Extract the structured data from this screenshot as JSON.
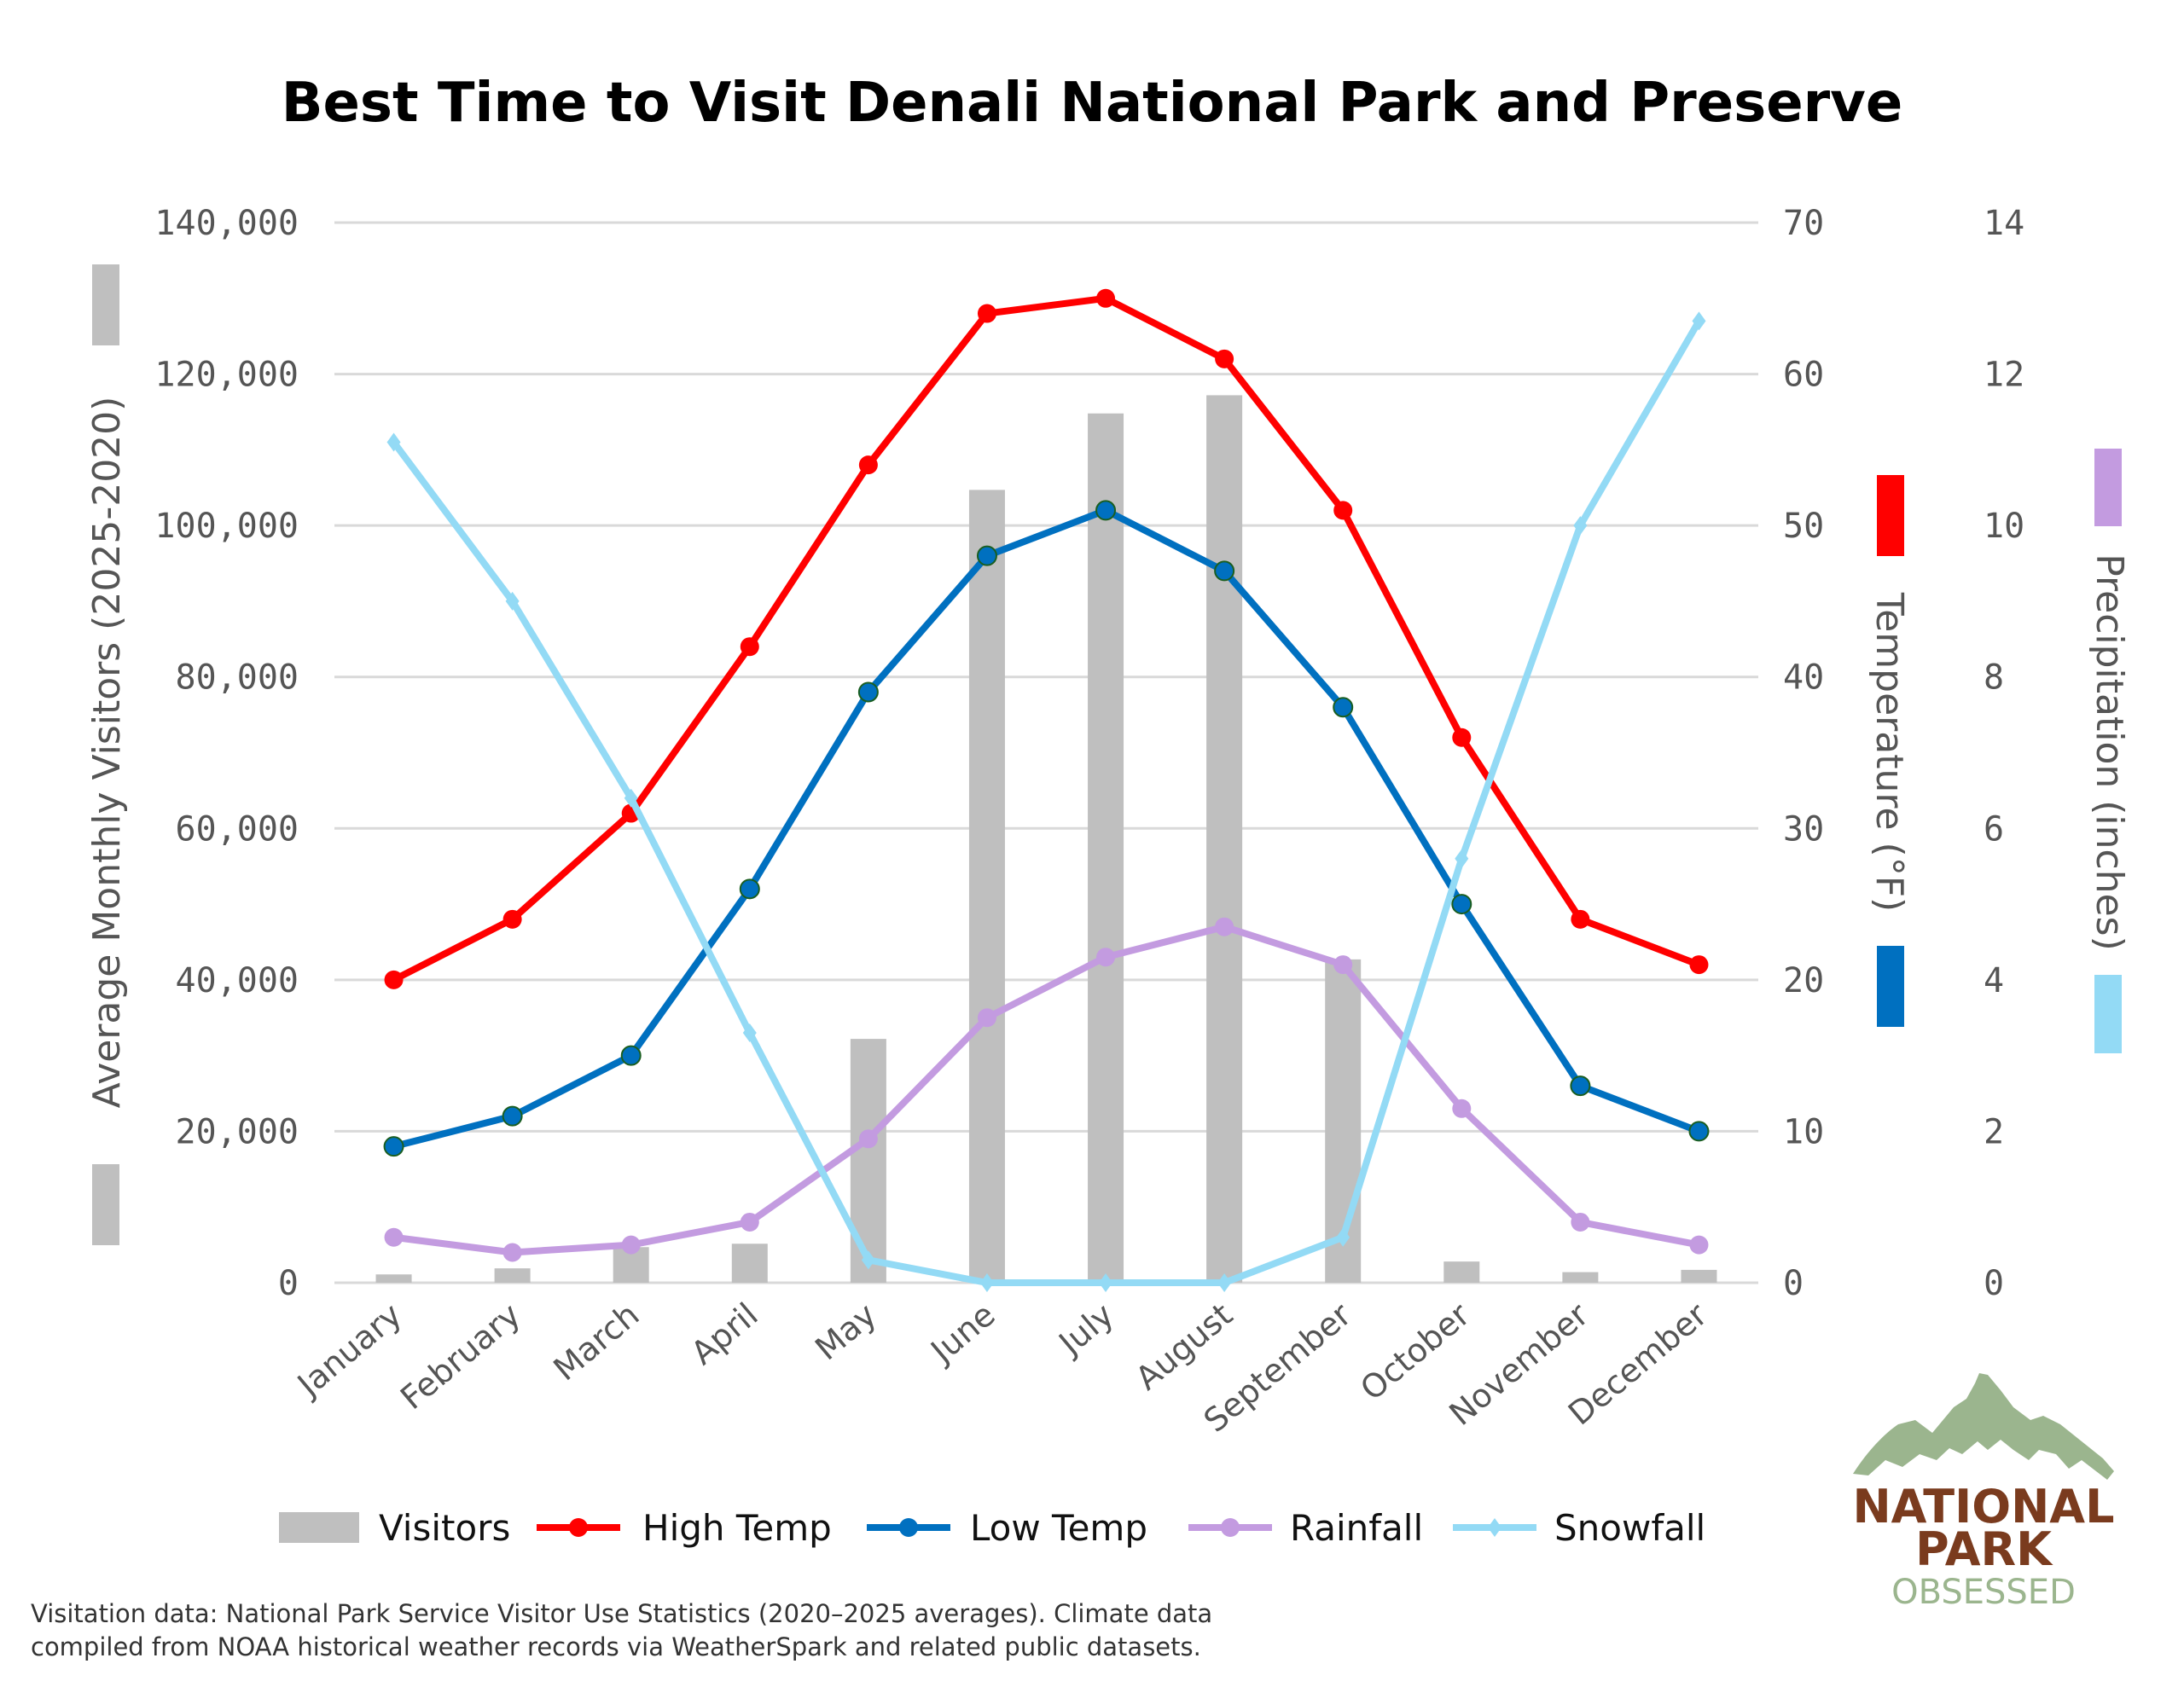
{
  "chart_data": {
    "type": "bar+line",
    "title": "Best Time to Visit Denali National Park and Preserve",
    "categories": [
      "January",
      "February",
      "March",
      "April",
      "May",
      "June",
      "July",
      "August",
      "September",
      "October",
      "November",
      "December"
    ],
    "axes": {
      "left": {
        "label": "Average Monthly Visitors (2025-2020)",
        "range": [
          0,
          140000
        ],
        "ticks": [
          "0",
          "20,000",
          "40,000",
          "60,000",
          "80,000",
          "100,000",
          "120,000",
          "140,000"
        ]
      },
      "right_temp": {
        "label": "Temperature (°F)",
        "range": [
          0,
          70
        ],
        "ticks": [
          "0",
          "10",
          "20",
          "30",
          "40",
          "50",
          "60",
          "70"
        ]
      },
      "right_precip": {
        "label": "Precipitation (inches)",
        "range": [
          0,
          14
        ],
        "ticks": [
          "0",
          "2",
          "4",
          "6",
          "8",
          "10",
          "12",
          "14"
        ]
      }
    },
    "grid": true,
    "legend_position": "bottom",
    "series": [
      {
        "name": "Visitors",
        "type": "bar",
        "axis": "left",
        "color": "#bfbfbf",
        "values": [
          1100,
          1900,
          4700,
          5150,
          32200,
          104700,
          114800,
          117200,
          42700,
          2800,
          1400,
          1700
        ]
      },
      {
        "name": "High Temp",
        "type": "line",
        "axis": "right_temp",
        "color": "#ff0000",
        "marker": "circle",
        "values": [
          20,
          24,
          31,
          42,
          54,
          64,
          65,
          61,
          51,
          36,
          24,
          21
        ]
      },
      {
        "name": "Low Temp",
        "type": "line",
        "axis": "right_temp",
        "color": "#0070c0",
        "marker": "circle",
        "values": [
          9,
          11,
          15,
          26,
          39,
          48,
          51,
          47,
          38,
          25,
          13,
          10
        ]
      },
      {
        "name": "Rainfall",
        "type": "line",
        "axis": "right_precip",
        "color": "#c39be0",
        "marker": "circle",
        "values": [
          0.6,
          0.4,
          0.5,
          0.8,
          1.9,
          3.5,
          4.3,
          4.7,
          4.2,
          2.3,
          0.8,
          0.5
        ]
      },
      {
        "name": "Snowfall",
        "type": "line",
        "axis": "right_precip",
        "color": "#93daf5",
        "marker": "diamond",
        "values": [
          11.1,
          9.0,
          6.4,
          3.3,
          0.3,
          0,
          0,
          0,
          0.6,
          5.6,
          10.0,
          12.7
        ]
      }
    ]
  },
  "footnote": {
    "line1": "Visitation data: National Park Service Visitor Use Statistics (2020–2025 averages). Climate data",
    "line2": "compiled from NOAA historical weather records via WeatherSpark and related public datasets."
  },
  "logo": {
    "line1": "NATIONAL",
    "line2": "PARK",
    "line3": "OBSESSED",
    "mountain_color": "#9bb58e",
    "text_color": "#7a3b1e"
  }
}
